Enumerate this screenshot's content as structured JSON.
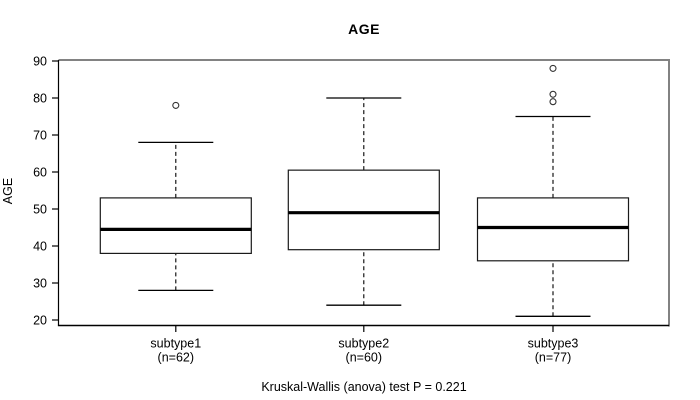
{
  "figure": {
    "title": "AGE",
    "ylabel": "AGE",
    "annotation": "Kruskal-Wallis (anova) test P = 0.221"
  },
  "chart_data": {
    "type": "boxplot",
    "title": "AGE",
    "xlabel": "",
    "ylabel": "AGE",
    "ylim": [
      18.4,
      90.4
    ],
    "y_ticks": [
      20,
      30,
      40,
      50,
      60,
      70,
      80,
      90
    ],
    "grid": false,
    "legend": "none",
    "annotation": "Kruskal-Wallis (anova) test P = 0.221",
    "categories": [
      {
        "label": "subtype1",
        "sublabel": "(n=62)",
        "n": 62,
        "whisker_low": 28,
        "q1": 38,
        "median": 44.5,
        "q3": 53,
        "whisker_high": 68,
        "outliers": [
          78
        ]
      },
      {
        "label": "subtype2",
        "sublabel": "(n=60)",
        "n": 60,
        "whisker_low": 24,
        "q1": 39,
        "median": 49,
        "q3": 60.5,
        "whisker_high": 80,
        "outliers": []
      },
      {
        "label": "subtype3",
        "sublabel": "(n=77)",
        "n": 77,
        "whisker_low": 21,
        "q1": 36,
        "median": 45,
        "q3": 53,
        "whisker_high": 75,
        "outliers": [
          79,
          81,
          88
        ]
      }
    ],
    "colors": {
      "box_fill": "#ffffff",
      "box_stroke": "#1a1a1a",
      "median": "#000000",
      "whisker": "#000000",
      "frame_shadow": "#828282",
      "axis": "#000000",
      "background": "#ffffff"
    }
  }
}
